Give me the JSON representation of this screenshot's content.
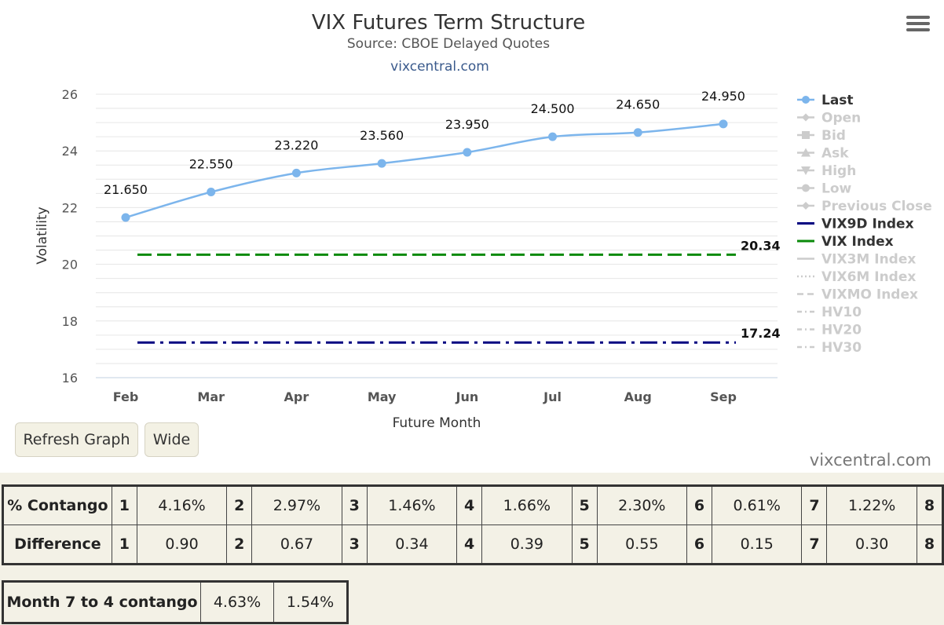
{
  "header": {
    "title": "VIX Futures Term Structure",
    "subtitle": "Source: CBOE Delayed Quotes",
    "site": "vixcentral.com"
  },
  "chart_data": {
    "type": "line",
    "xlabel": "Future Month",
    "ylabel": "Volatility",
    "categories": [
      "Feb",
      "Mar",
      "Apr",
      "May",
      "Jun",
      "Jul",
      "Aug",
      "Sep"
    ],
    "ylim": [
      16,
      26
    ],
    "yticks": [
      16,
      18,
      20,
      22,
      24,
      26
    ],
    "grid": true,
    "legend_position": "right",
    "series": [
      {
        "name": "Last",
        "values": [
          21.65,
          22.55,
          23.22,
          23.56,
          23.95,
          24.5,
          24.65,
          24.95
        ],
        "labels": [
          "21.650",
          "22.550",
          "23.220",
          "23.560",
          "23.950",
          "24.500",
          "24.650",
          "24.950"
        ],
        "color": "#7cb5ec",
        "active": true
      },
      {
        "name": "VIX Index",
        "value": 20.34,
        "label": "20.34",
        "color": "#0a8a0a",
        "style": "dashed",
        "active": true
      },
      {
        "name": "VIX9D Index",
        "value": 17.24,
        "label": "17.24",
        "color": "#000080",
        "style": "dashdot",
        "active": true
      }
    ],
    "legend": [
      {
        "name": "Last",
        "active": true,
        "color": "#7cb5ec",
        "marker": "circle"
      },
      {
        "name": "Open",
        "active": false,
        "color": "#cccccc",
        "marker": "diamond"
      },
      {
        "name": "Bid",
        "active": false,
        "color": "#cccccc",
        "marker": "square"
      },
      {
        "name": "Ask",
        "active": false,
        "color": "#cccccc",
        "marker": "triangle"
      },
      {
        "name": "High",
        "active": false,
        "color": "#cccccc",
        "marker": "triangle-down"
      },
      {
        "name": "Low",
        "active": false,
        "color": "#cccccc",
        "marker": "circle"
      },
      {
        "name": "Previous Close",
        "active": false,
        "color": "#cccccc",
        "marker": "diamond"
      },
      {
        "name": "VIX9D Index",
        "active": true,
        "color": "#000080",
        "marker": "line"
      },
      {
        "name": "VIX Index",
        "active": true,
        "color": "#0a8a0a",
        "marker": "line"
      },
      {
        "name": "VIX3M Index",
        "active": false,
        "color": "#cccccc",
        "marker": "line"
      },
      {
        "name": "VIX6M Index",
        "active": false,
        "color": "#cccccc",
        "marker": "dotted"
      },
      {
        "name": "VIXMO Index",
        "active": false,
        "color": "#cccccc",
        "marker": "dashed"
      },
      {
        "name": "HV10",
        "active": false,
        "color": "#cccccc",
        "marker": "dashdot"
      },
      {
        "name": "HV20",
        "active": false,
        "color": "#cccccc",
        "marker": "dashdot"
      },
      {
        "name": "HV30",
        "active": false,
        "color": "#cccccc",
        "marker": "dashdot"
      }
    ]
  },
  "buttons": {
    "refresh": "Refresh Graph",
    "wide": "Wide"
  },
  "watermark": "vixcentral.com",
  "contango_table": {
    "rows": [
      {
        "label": "% Contango",
        "cells": [
          [
            "1",
            "4.16%"
          ],
          [
            "2",
            "2.97%"
          ],
          [
            "3",
            "1.46%"
          ],
          [
            "4",
            "1.66%"
          ],
          [
            "5",
            "2.30%"
          ],
          [
            "6",
            "0.61%"
          ],
          [
            "7",
            "1.22%"
          ]
        ],
        "last_index": "8"
      },
      {
        "label": "Difference",
        "cells": [
          [
            "1",
            "0.90"
          ],
          [
            "2",
            "0.67"
          ],
          [
            "3",
            "0.34"
          ],
          [
            "4",
            "0.39"
          ],
          [
            "5",
            "0.55"
          ],
          [
            "6",
            "0.15"
          ],
          [
            "7",
            "0.30"
          ]
        ],
        "last_index": "8"
      }
    ]
  },
  "month_table": {
    "label": "Month 7 to 4 contango",
    "values": [
      "4.63%",
      "1.54%"
    ]
  },
  "colors": {
    "background": "#f3f1e6",
    "chart_background": "#ffffff",
    "last_series": "#7cb5ec",
    "vix_index": "#0a8a0a",
    "vix9d_index": "#000080",
    "inactive": "#cccccc"
  }
}
